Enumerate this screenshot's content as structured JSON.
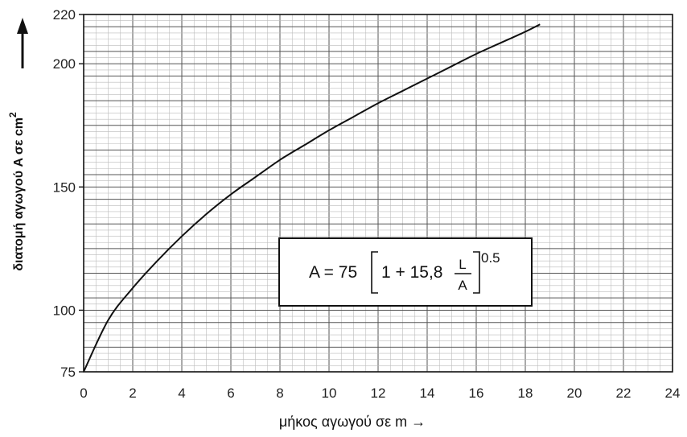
{
  "chart_data": {
    "type": "line",
    "xlabel": "μήκος αγωγού σε m →",
    "ylabel_text": "διατομή αγωγού A σε cm",
    "ylabel_sup": "2",
    "xlim": [
      0,
      24
    ],
    "ylim": [
      75,
      220
    ],
    "x_ticks": [
      "0",
      "2",
      "4",
      "6",
      "8",
      "10",
      "12",
      "14",
      "16",
      "18",
      "20",
      "22",
      "24"
    ],
    "y_ticks": [
      "75",
      "100",
      "150",
      "200",
      "220"
    ],
    "grid": true,
    "series": [
      {
        "x": [
          0,
          1,
          2,
          3,
          4,
          5,
          6,
          7,
          8,
          9,
          10,
          11,
          12,
          13,
          14,
          15,
          16,
          17,
          18,
          18.6
        ],
        "values": [
          75,
          96,
          109,
          120,
          130,
          139,
          147,
          154,
          161,
          167,
          173,
          178.5,
          184,
          189,
          194,
          199,
          204,
          208.5,
          213,
          216
        ]
      }
    ],
    "annotation": {
      "lhs": "A = 75",
      "inner": "1 + 15,8",
      "frac_num": "L",
      "frac_den": "A",
      "exponent": "0.5"
    }
  }
}
